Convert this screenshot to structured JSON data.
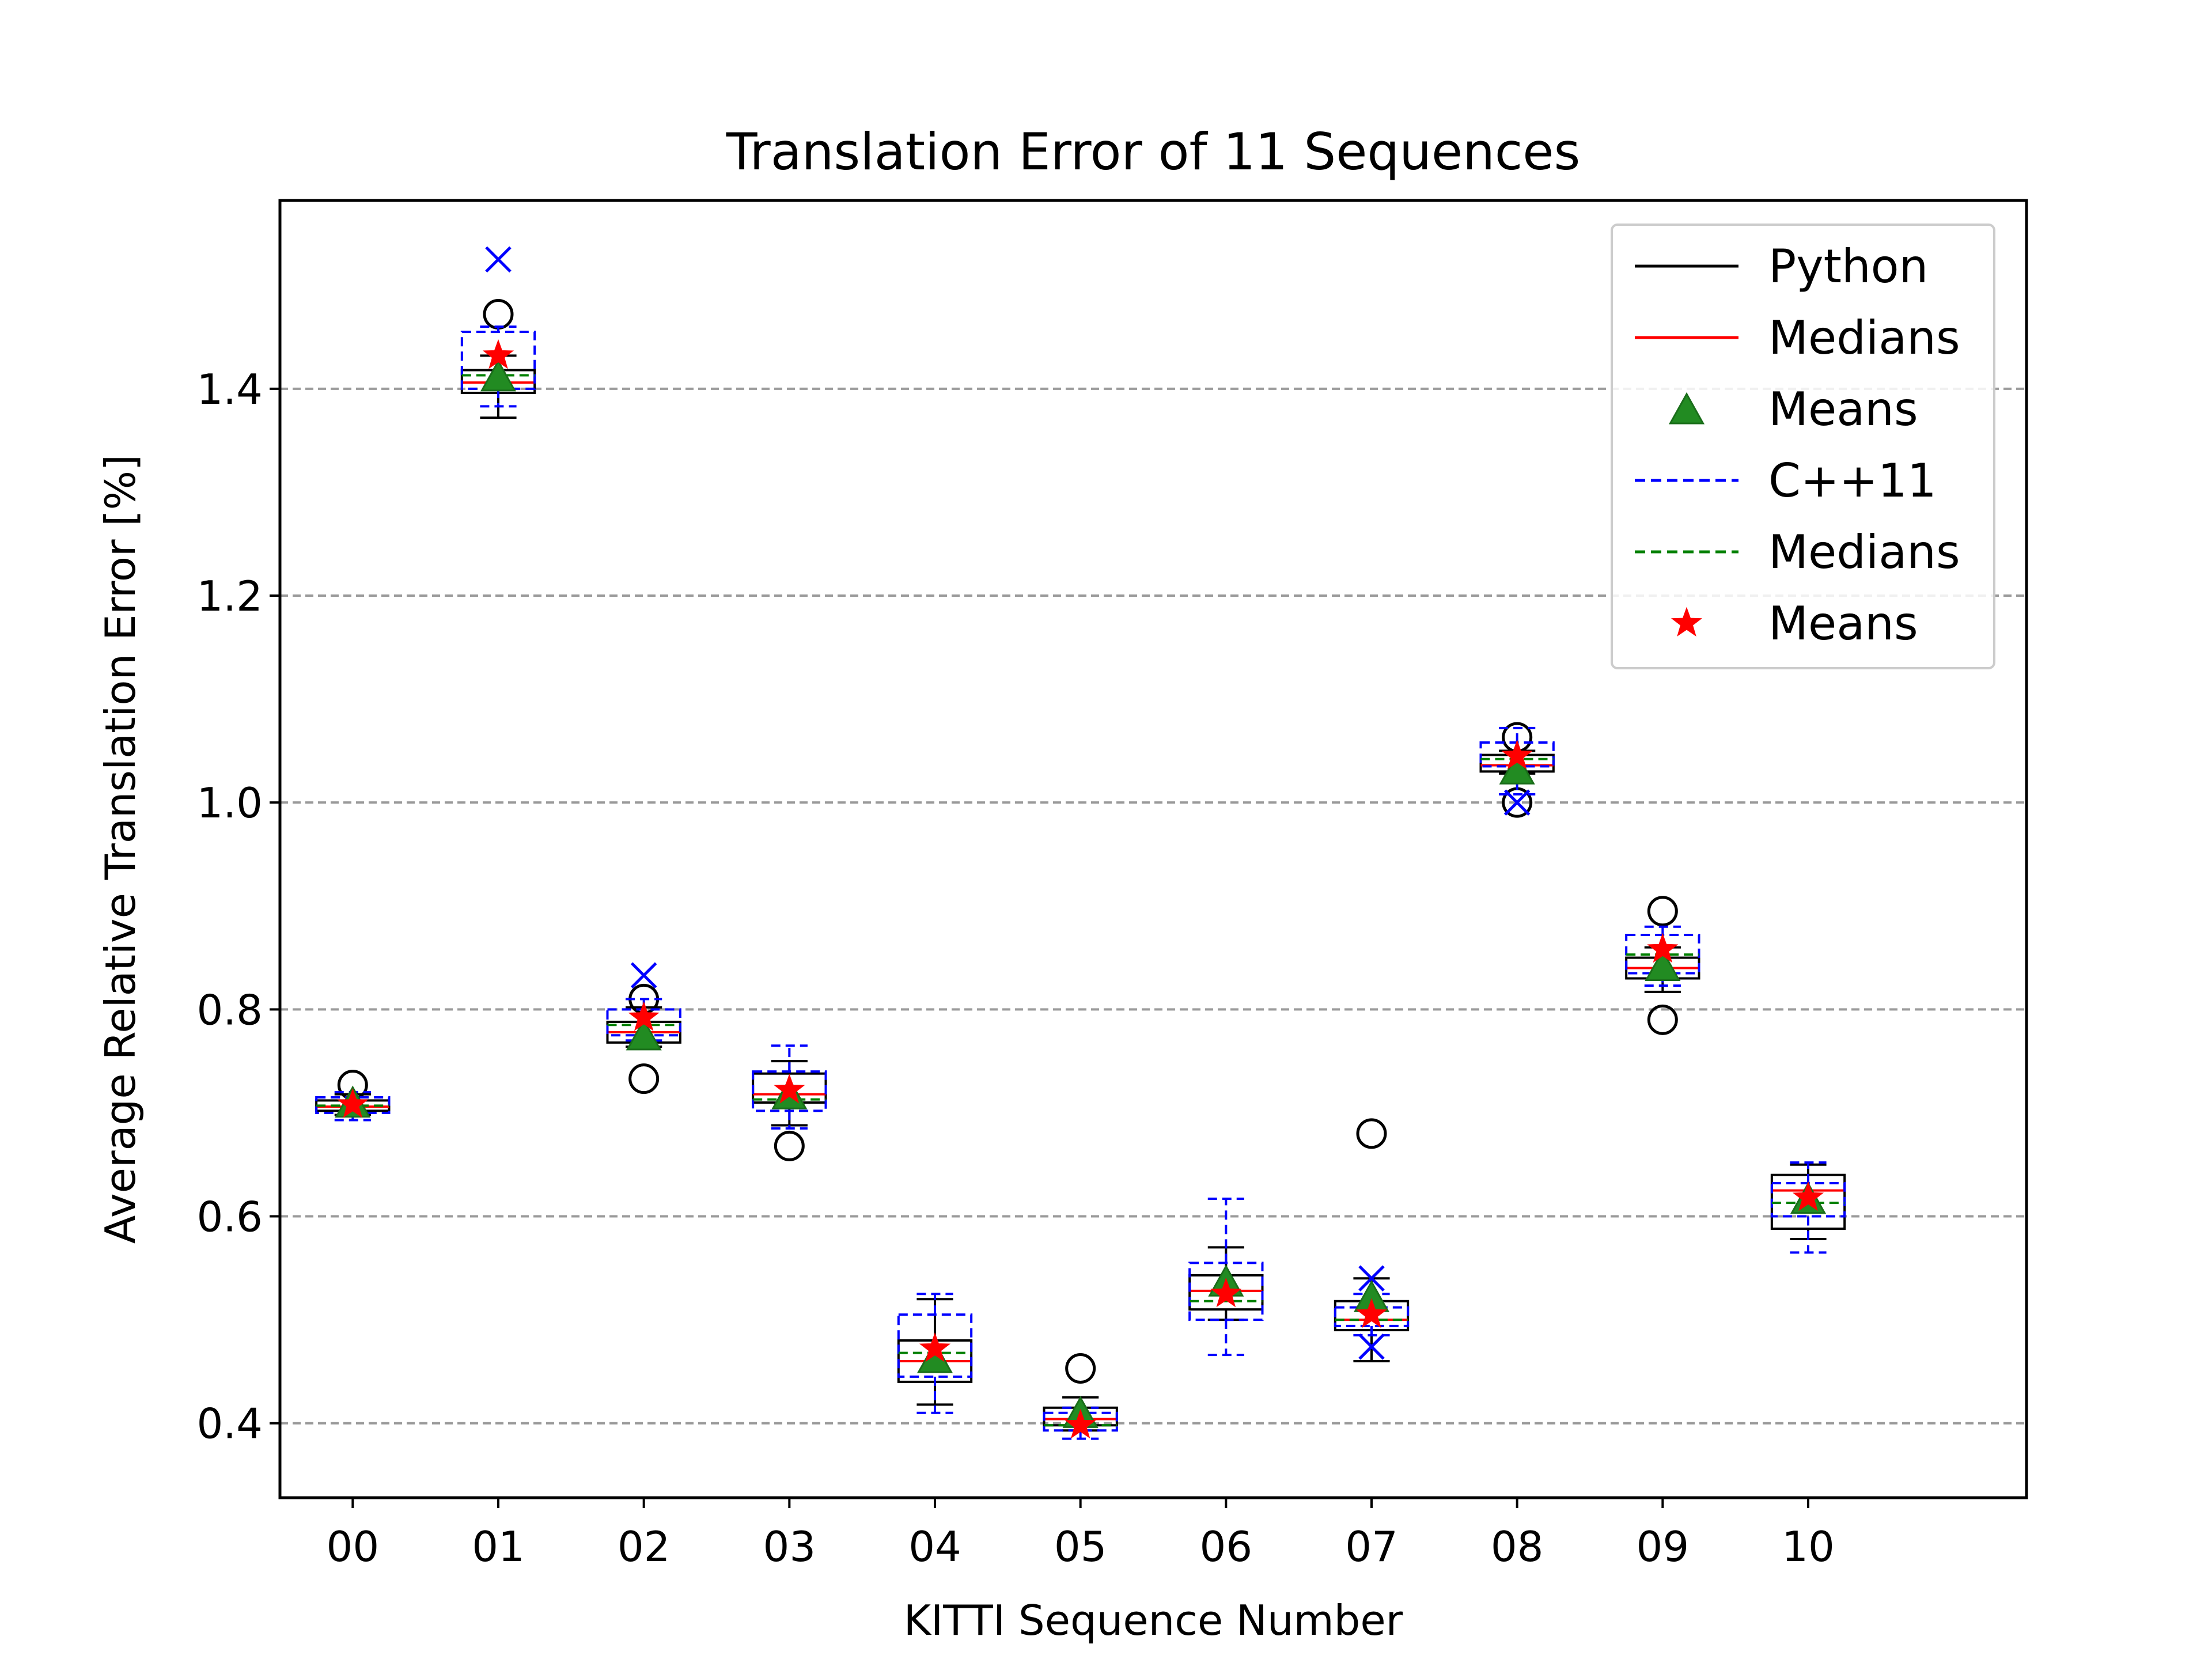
{
  "chart_data": {
    "type": "box",
    "title": "Translation Error of 11 Sequences",
    "xlabel": "KITTI Sequence Number",
    "ylabel": "Average Relative Translation Error [%]",
    "ylim": [
      0.328,
      1.582
    ],
    "yticks": [
      0.4,
      0.6,
      0.8,
      1.0,
      1.2,
      1.4
    ],
    "ytick_labels": [
      "0.4",
      "0.6",
      "0.8",
      "1.0",
      "1.2",
      "1.4"
    ],
    "grid": "y-dashed",
    "legend_position": "top-right",
    "categories": [
      "00",
      "01",
      "02",
      "03",
      "04",
      "05",
      "06",
      "07",
      "08",
      "09",
      "10"
    ],
    "legend": [
      {
        "label": "Python",
        "style": "solid",
        "color": "#000000"
      },
      {
        "label": "Medians",
        "style": "solid",
        "color": "#ff0000"
      },
      {
        "label": "Means",
        "style": "triangle",
        "color": "#228b22"
      },
      {
        "label": "C++11",
        "style": "dashed",
        "color": "#0000ff"
      },
      {
        "label": "Medians",
        "style": "dashed",
        "color": "#008000"
      },
      {
        "label": "Means",
        "style": "star",
        "color": "#ff0000"
      }
    ],
    "series": [
      {
        "name": "Python",
        "color": "#000000",
        "box_style": "solid",
        "median_color": "#ff0000",
        "mean_marker": "triangle",
        "mean_color": "#228b22",
        "outlier_marker": "circle",
        "boxes": [
          {
            "whislo": 0.698,
            "q1": 0.702,
            "med": 0.706,
            "q3": 0.712,
            "whishi": 0.718,
            "mean": 0.708,
            "fliers": [
              0.727
            ]
          },
          {
            "whislo": 1.372,
            "q1": 1.396,
            "med": 1.406,
            "q3": 1.418,
            "whishi": 1.432,
            "mean": 1.41,
            "fliers": [
              1.472
            ]
          },
          {
            "whislo": 0.764,
            "q1": 0.768,
            "med": 0.778,
            "q3": 0.788,
            "whishi": 0.802,
            "mean": 0.773,
            "fliers": [
              0.733,
              0.81
            ]
          },
          {
            "whislo": 0.688,
            "q1": 0.71,
            "med": 0.718,
            "q3": 0.738,
            "whishi": 0.75,
            "mean": 0.716,
            "fliers": [
              0.668
            ]
          },
          {
            "whislo": 0.418,
            "q1": 0.44,
            "med": 0.46,
            "q3": 0.48,
            "whishi": 0.52,
            "mean": 0.461,
            "fliers": []
          },
          {
            "whislo": 0.393,
            "q1": 0.398,
            "med": 0.404,
            "q3": 0.415,
            "whishi": 0.425,
            "mean": 0.408,
            "fliers": [
              0.453
            ]
          },
          {
            "whislo": 0.5,
            "q1": 0.51,
            "med": 0.528,
            "q3": 0.543,
            "whishi": 0.57,
            "mean": 0.535,
            "fliers": []
          },
          {
            "whislo": 0.46,
            "q1": 0.49,
            "med": 0.5,
            "q3": 0.518,
            "whishi": 0.54,
            "mean": 0.52,
            "fliers": [
              0.68
            ]
          },
          {
            "whislo": 1.028,
            "q1": 1.03,
            "med": 1.036,
            "q3": 1.046,
            "whishi": 1.05,
            "mean": 1.03,
            "fliers": [
              1.0,
              1.063
            ]
          },
          {
            "whislo": 0.817,
            "q1": 0.83,
            "med": 0.84,
            "q3": 0.85,
            "whishi": 0.86,
            "mean": 0.84,
            "fliers": [
              0.79,
              0.895
            ]
          },
          {
            "whislo": 0.578,
            "q1": 0.588,
            "med": 0.625,
            "q3": 0.64,
            "whishi": 0.65,
            "mean": 0.615,
            "fliers": []
          }
        ]
      },
      {
        "name": "C++11",
        "color": "#0000ff",
        "box_style": "dashed",
        "median_color": "#008000",
        "mean_marker": "star",
        "mean_color": "#ff0000",
        "outlier_marker": "x",
        "boxes": [
          {
            "whislo": 0.693,
            "q1": 0.7,
            "med": 0.707,
            "q3": 0.715,
            "whishi": 0.72,
            "mean": 0.708,
            "fliers": []
          },
          {
            "whislo": 1.383,
            "q1": 1.4,
            "med": 1.413,
            "q3": 1.455,
            "whishi": 1.46,
            "mean": 1.432,
            "fliers": [
              1.525
            ]
          },
          {
            "whislo": 0.77,
            "q1": 0.775,
            "med": 0.785,
            "q3": 0.8,
            "whishi": 0.81,
            "mean": 0.792,
            "fliers": [
              0.833
            ]
          },
          {
            "whislo": 0.685,
            "q1": 0.702,
            "med": 0.713,
            "q3": 0.74,
            "whishi": 0.765,
            "mean": 0.722,
            "fliers": []
          },
          {
            "whislo": 0.41,
            "q1": 0.445,
            "med": 0.468,
            "q3": 0.505,
            "whishi": 0.525,
            "mean": 0.472,
            "fliers": []
          },
          {
            "whislo": 0.385,
            "q1": 0.393,
            "med": 0.398,
            "q3": 0.41,
            "whishi": 0.415,
            "mean": 0.398,
            "fliers": []
          },
          {
            "whislo": 0.466,
            "q1": 0.5,
            "med": 0.518,
            "q3": 0.555,
            "whishi": 0.617,
            "mean": 0.525,
            "fliers": []
          },
          {
            "whislo": 0.485,
            "q1": 0.494,
            "med": 0.5,
            "q3": 0.512,
            "whishi": 0.525,
            "mean": 0.505,
            "fliers": [
              0.474,
              0.54
            ]
          },
          {
            "whislo": 1.008,
            "q1": 1.035,
            "med": 1.042,
            "q3": 1.058,
            "whishi": 1.072,
            "mean": 1.045,
            "fliers": [
              1.0
            ]
          },
          {
            "whislo": 0.823,
            "q1": 0.835,
            "med": 0.853,
            "q3": 0.872,
            "whishi": 0.88,
            "mean": 0.858,
            "fliers": []
          },
          {
            "whislo": 0.565,
            "q1": 0.6,
            "med": 0.613,
            "q3": 0.632,
            "whishi": 0.652,
            "mean": 0.618,
            "fliers": []
          }
        ]
      }
    ]
  }
}
